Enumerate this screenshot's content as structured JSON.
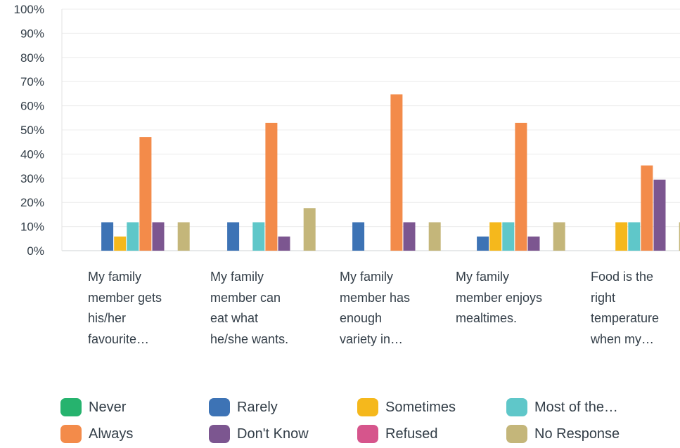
{
  "chart_data": {
    "type": "bar",
    "categories": [
      "My family member gets his/her favourite…",
      "My family member can eat what he/she wants.",
      "My family member has enough variety in…",
      "My family member enjoys mealtimes.",
      "Food is the right temperature when my…"
    ],
    "category_lines": [
      [
        "My family",
        "member gets",
        "his/her",
        "favourite…"
      ],
      [
        "My family",
        "member can",
        "eat what",
        "he/she wants."
      ],
      [
        "My family",
        "member has",
        "enough",
        "variety in…"
      ],
      [
        "My family",
        "member enjoys",
        "mealtimes."
      ],
      [
        "Food is the",
        "right",
        "temperature",
        "when my…"
      ]
    ],
    "series": [
      {
        "name": "Never",
        "color": "#26b36e",
        "values": [
          0,
          0,
          0,
          0,
          0
        ]
      },
      {
        "name": "Rarely",
        "color": "#3d73b5",
        "values": [
          11.76,
          11.76,
          11.76,
          5.88,
          0
        ]
      },
      {
        "name": "Sometimes",
        "color": "#f5b81c",
        "values": [
          5.88,
          0,
          0,
          11.76,
          11.76
        ]
      },
      {
        "name": "Most of the…",
        "color": "#5fc7c9",
        "values": [
          11.76,
          11.76,
          0,
          11.76,
          11.76
        ]
      },
      {
        "name": "Always",
        "color": "#f38b4a",
        "values": [
          47.06,
          52.94,
          64.71,
          52.94,
          35.29
        ]
      },
      {
        "name": "Don't Know",
        "color": "#7c5690",
        "values": [
          11.76,
          5.88,
          11.76,
          5.88,
          29.41
        ]
      },
      {
        "name": "Refused",
        "color": "#d6558c",
        "values": [
          0,
          0,
          0,
          0,
          0
        ]
      },
      {
        "name": "No Response",
        "color": "#c4b67a",
        "values": [
          11.76,
          17.65,
          11.76,
          11.76,
          11.76
        ]
      }
    ],
    "y_ticks": [
      "0%",
      "10%",
      "20%",
      "30%",
      "40%",
      "50%",
      "60%",
      "70%",
      "80%",
      "90%",
      "100%"
    ],
    "ylim": [
      0,
      100
    ],
    "grid": true,
    "legend_position": "bottom"
  }
}
